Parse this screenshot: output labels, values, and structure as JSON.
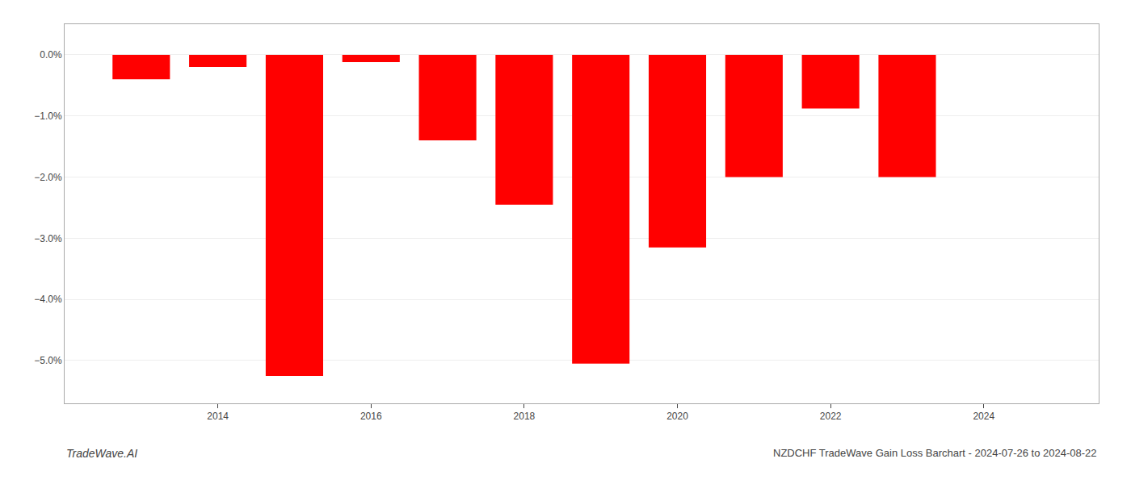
{
  "chart_data": {
    "type": "bar",
    "title": "NZDCHF TradeWave Gain Loss Barchart - 2024-07-26 to 2024-08-22",
    "annotations": [
      "TradeWave.AI"
    ],
    "x": [
      2013,
      2014,
      2015,
      2016,
      2017,
      2018,
      2019,
      2020,
      2021,
      2022,
      2023
    ],
    "values": [
      -0.004,
      -0.002,
      -0.0525,
      -0.0012,
      -0.014,
      -0.0245,
      -0.0505,
      -0.0315,
      -0.02,
      -0.0088,
      -0.02
    ],
    "color": "#ff0000",
    "xlim": [
      2012.0,
      2025.5
    ],
    "xticks": [
      2014,
      2016,
      2018,
      2020,
      2022,
      2024
    ],
    "ylim": [
      -0.057,
      0.005
    ],
    "yticks": [
      {
        "value": 0.0,
        "label": "0.0%"
      },
      {
        "value": -0.01,
        "label": "−1.0%"
      },
      {
        "value": -0.02,
        "label": "−2.0%"
      },
      {
        "value": -0.03,
        "label": "−3.0%"
      },
      {
        "value": -0.04,
        "label": "−4.0%"
      },
      {
        "value": -0.05,
        "label": "−5.0%"
      }
    ],
    "grid": true
  }
}
